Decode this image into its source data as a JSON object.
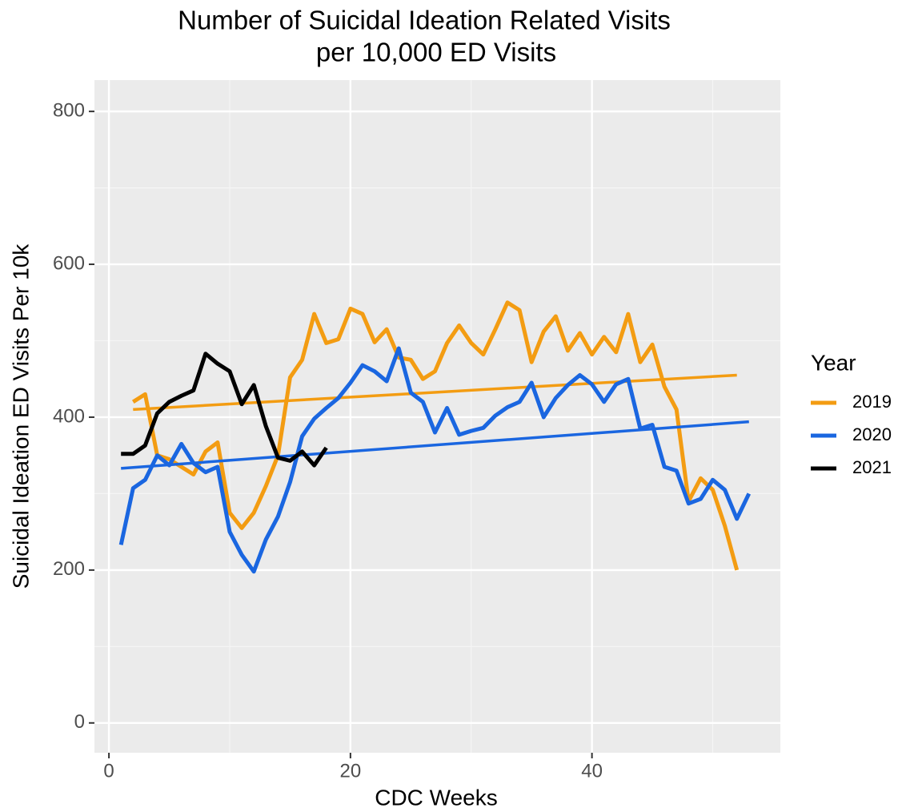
{
  "chart_data": {
    "type": "line",
    "title": "Number of Suicidal Ideation Related Visits",
    "subtitle": "per 10,000 ED Visits",
    "xlabel": "CDC Weeks",
    "ylabel": "Suicidal Ideation ED Visits Per 10k",
    "legend_title": "Year",
    "legend_position": "right",
    "grid": true,
    "xlim": [
      -1.2,
      55.6
    ],
    "ylim": [
      -39,
      841
    ],
    "xticks": [
      0,
      20,
      40
    ],
    "yticks": [
      0,
      200,
      400,
      600,
      800
    ],
    "series": [
      {
        "name": "2019",
        "color": "#f39c12",
        "x": [
          2,
          3,
          4,
          5,
          6,
          7,
          8,
          9,
          10,
          11,
          12,
          13,
          14,
          15,
          16,
          17,
          18,
          19,
          20,
          21,
          22,
          23,
          24,
          25,
          26,
          27,
          28,
          29,
          30,
          31,
          32,
          33,
          34,
          35,
          36,
          37,
          38,
          39,
          40,
          41,
          42,
          43,
          44,
          45,
          46,
          47,
          48,
          49,
          50,
          51,
          52
        ],
        "values": [
          420,
          430,
          350,
          345,
          335,
          325,
          355,
          367,
          275,
          255,
          275,
          310,
          350,
          452,
          475,
          535,
          497,
          502,
          542,
          535,
          498,
          515,
          478,
          475,
          450,
          460,
          497,
          520,
          497,
          482,
          515,
          550,
          540,
          472,
          512,
          532,
          487,
          510,
          482,
          505,
          485,
          535,
          472,
          495,
          440,
          410,
          290,
          320,
          305,
          258,
          200
        ],
        "trend": {
          "x": [
            2,
            52
          ],
          "values": [
            410,
            455
          ]
        }
      },
      {
        "name": "2020",
        "color": "#1a66e0",
        "x": [
          1,
          2,
          3,
          4,
          5,
          6,
          7,
          8,
          9,
          10,
          11,
          12,
          13,
          14,
          15,
          16,
          17,
          18,
          19,
          20,
          21,
          22,
          23,
          24,
          25,
          26,
          27,
          28,
          29,
          30,
          31,
          32,
          33,
          34,
          35,
          36,
          37,
          38,
          39,
          40,
          41,
          42,
          43,
          44,
          45,
          46,
          47,
          48,
          49,
          50,
          51,
          52,
          53
        ],
        "values": [
          233,
          307,
          318,
          350,
          337,
          365,
          340,
          328,
          335,
          250,
          220,
          198,
          240,
          270,
          315,
          375,
          398,
          412,
          425,
          445,
          468,
          460,
          447,
          490,
          432,
          420,
          380,
          412,
          377,
          382,
          386,
          402,
          413,
          420,
          445,
          400,
          425,
          442,
          455,
          443,
          420,
          443,
          450,
          385,
          390,
          335,
          330,
          287,
          293,
          318,
          305,
          267,
          300
        ],
        "trend": {
          "x": [
            1,
            53
          ],
          "values": [
            333,
            394
          ]
        }
      },
      {
        "name": "2021",
        "color": "#000000",
        "x": [
          1,
          2,
          3,
          4,
          5,
          6,
          7,
          8,
          9,
          10,
          11,
          12,
          13,
          14,
          15,
          16,
          17,
          18
        ],
        "values": [
          352,
          352,
          363,
          405,
          420,
          428,
          435,
          483,
          470,
          460,
          417,
          442,
          388,
          347,
          343,
          355,
          337,
          360
        ]
      }
    ]
  }
}
